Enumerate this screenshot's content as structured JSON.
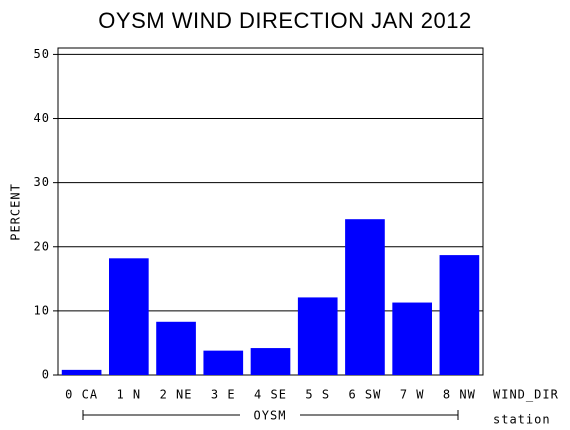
{
  "chart_data": {
    "type": "bar",
    "title": "OYSM WIND DIRECTION JAN 2012",
    "y_label": "PERCENT",
    "x_label": "WIND_DIR",
    "group_label": "station",
    "group": "OYSM",
    "categories": [
      "0 CA",
      "1 N",
      "2 NE",
      "3 E",
      "4 SE",
      "5 S",
      "6 SW",
      "7 W",
      "8 NW"
    ],
    "values": [
      0.8,
      18.2,
      8.3,
      3.8,
      4.2,
      12.1,
      24.3,
      11.3,
      18.7
    ],
    "color": "#0000ff",
    "ylim": [
      0,
      51
    ],
    "yticks": [
      0,
      10,
      20,
      30,
      40,
      50
    ],
    "grid": true
  }
}
